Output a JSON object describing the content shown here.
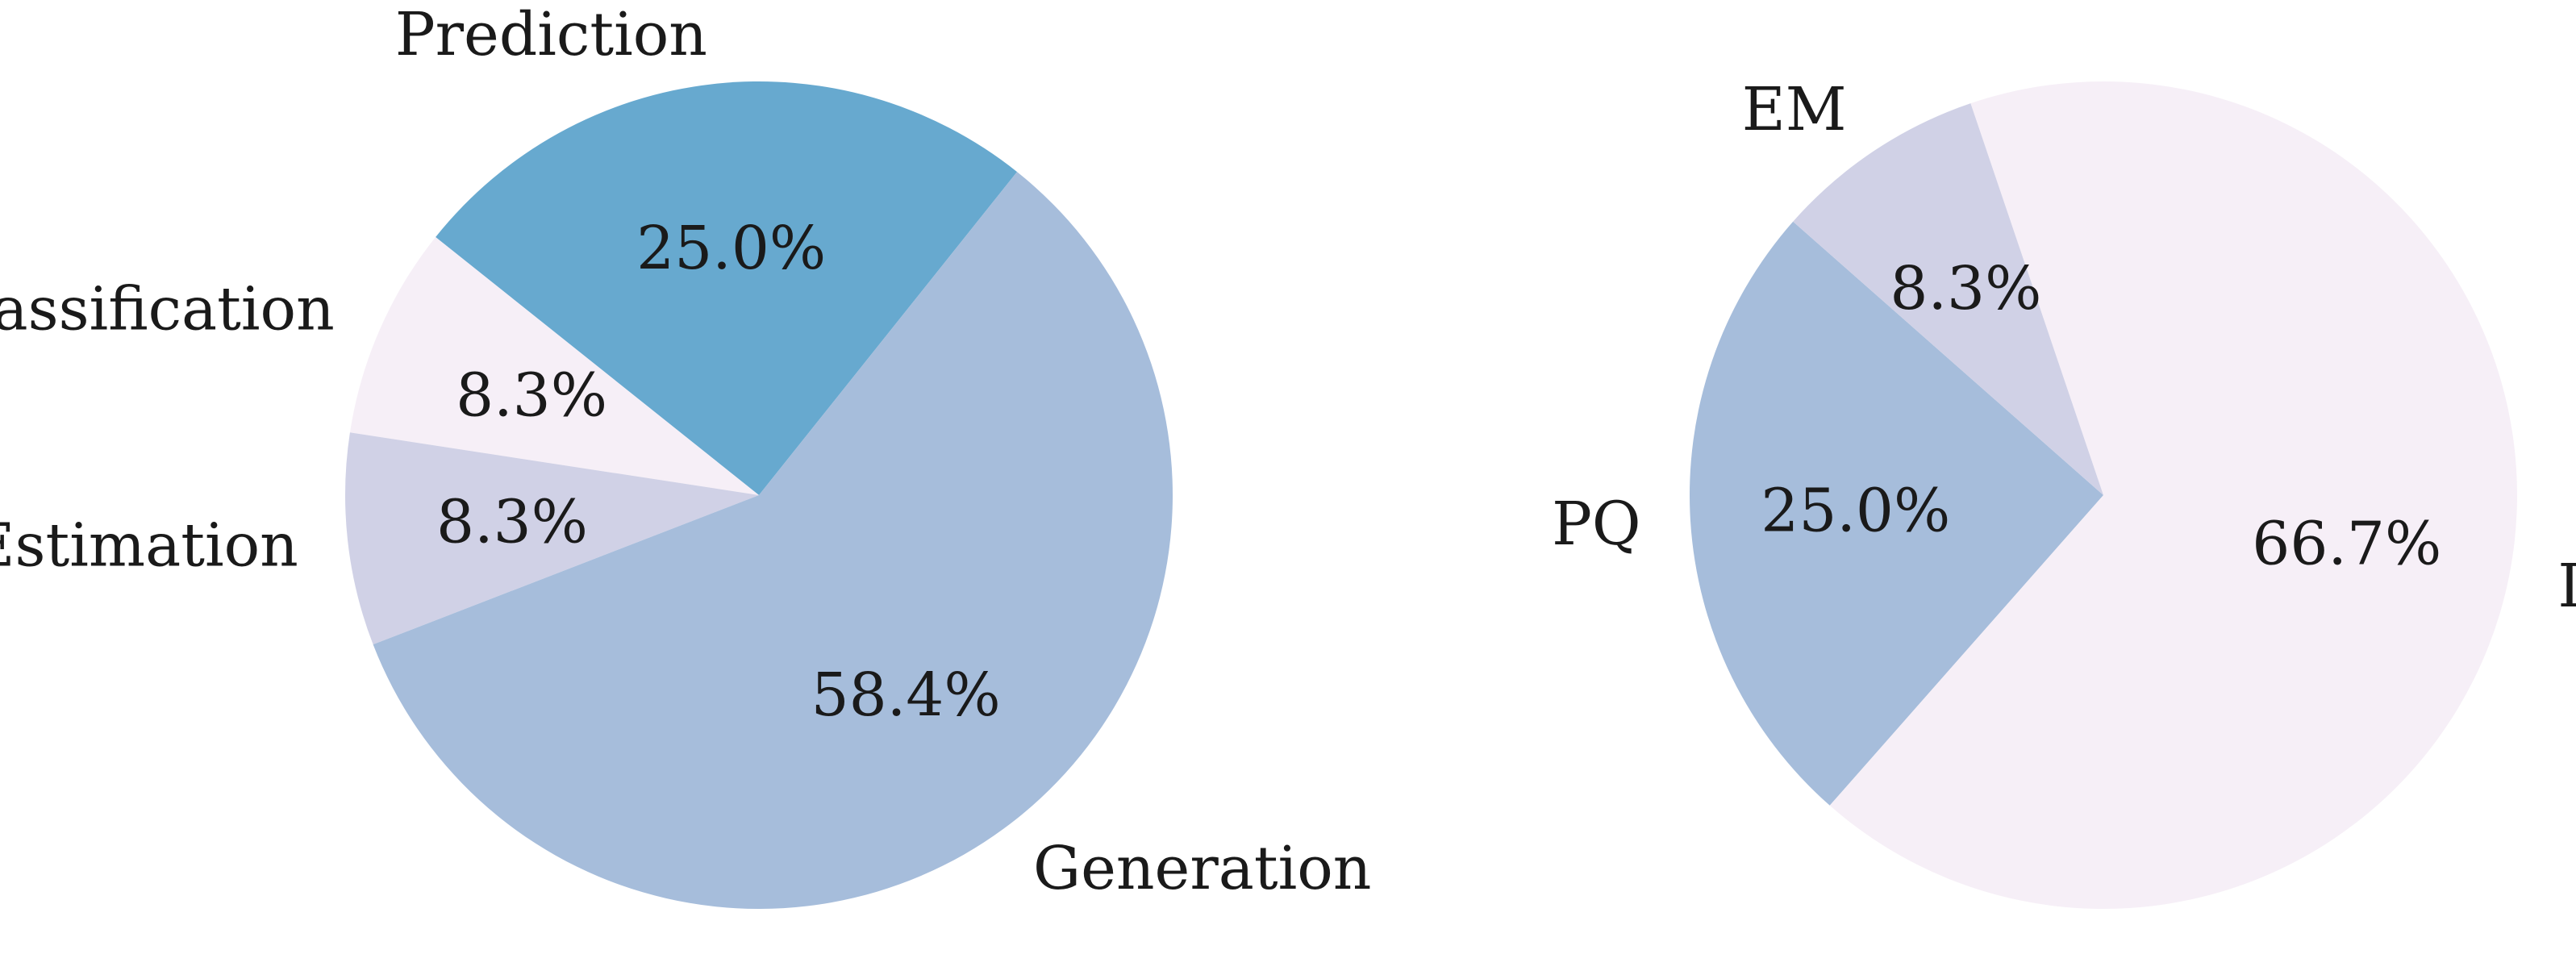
{
  "chart_data": [
    {
      "type": "pie",
      "title": "",
      "slices": [
        {
          "label": "Prediction",
          "value": 25.0,
          "pct_label": "25.0%",
          "color": "#67a9cf"
        },
        {
          "label": "Classification",
          "value": 8.3,
          "pct_label": "8.3%",
          "color": "#f6eff7"
        },
        {
          "label": "Estimation",
          "value": 8.3,
          "pct_label": "8.3%",
          "color": "#d0d1e6"
        },
        {
          "label": "Generation",
          "value": 58.4,
          "pct_label": "58.4%",
          "color": "#a6bddb"
        }
      ]
    },
    {
      "type": "pie",
      "title": "",
      "slices": [
        {
          "label": "PQ",
          "value": 25.0,
          "pct_label": "25.0%",
          "color": "#a6bddb"
        },
        {
          "label": "DER",
          "value": 66.7,
          "pct_label": "66.7%",
          "color": "#f6eff7"
        },
        {
          "label": "EM",
          "value": 8.3,
          "pct_label": "8.3%",
          "color": "#d0d1e6"
        }
      ]
    }
  ]
}
